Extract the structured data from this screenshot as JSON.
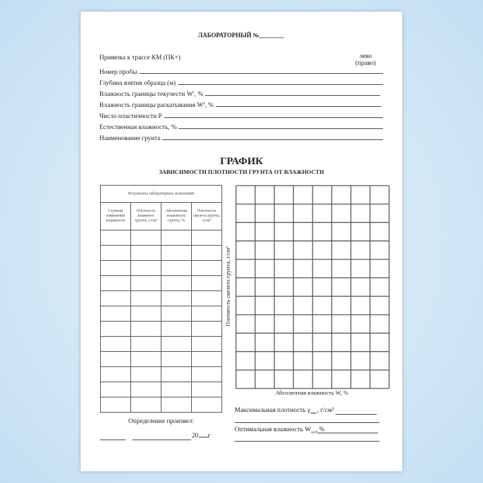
{
  "header": {
    "title": "ЛАБОРАТОРНЫЙ №________"
  },
  "fields": {
    "binding": "Привязка к трассе КМ (ПК+)",
    "side_left": "лево",
    "side_right": "(право)",
    "items": [
      "Номер пробы",
      "Глубина взятия образца (м)",
      "Влажность границы текучести W",
      "Влажность границы раскатывания W",
      "Число пластичности P",
      "Естественная влажность, %",
      "Наименование грунта"
    ],
    "sub_t": "т",
    "sub_p": "р",
    "pct": ", %"
  },
  "graph": {
    "title": "ГРАФИК",
    "subtitle": "ЗАВИСИМОСТИ ПЛОТНОСТИ ГРУНТА ОТ ВЛАЖНОСТИ",
    "ylabel": "Плотность скелета грунта, г/см³",
    "xlabel": "Абсолютная влажность W, %",
    "columns": 8,
    "rows": 11
  },
  "table": {
    "caption": "Результаты лабораторных испытаний",
    "headers": [
      "Ступени изменения влажности",
      "Плотность влажного грунта, г/см³",
      "Абсолютная влажность грунта, %",
      "Плотность скелета грунта, г,см³"
    ],
    "empty_rows": 12
  },
  "footer": {
    "determined": "Определение произвел:",
    "year": "20",
    "year_suffix": "г",
    "max_density": "Максимальная плотность γ",
    "max_sub": "макс",
    "max_unit": ", г/см³",
    "opt_moisture": "Оптимальная влажность W",
    "opt_sub": "опт",
    "opt_unit": ", %"
  }
}
